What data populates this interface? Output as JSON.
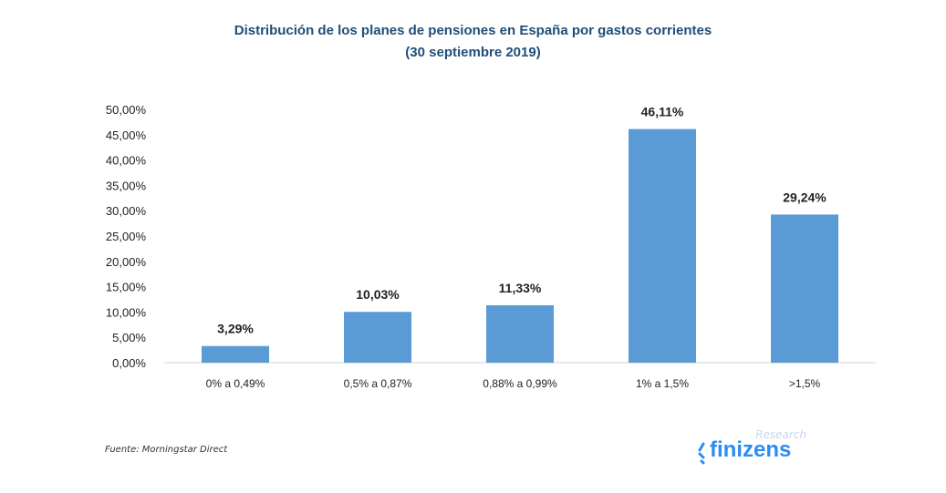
{
  "chart_data": {
    "type": "bar",
    "title": "Distribución de los planes de pensiones en España por gastos corrientes",
    "subtitle": "(30 septiembre 2019)",
    "categories": [
      "0% a 0,49%",
      "0,5% a 0,87%",
      "0,88% a 0,99%",
      "1% a 1,5%",
      ">1,5%"
    ],
    "values": [
      3.29,
      10.03,
      11.33,
      46.11,
      29.24
    ],
    "data_labels": [
      "3,29%",
      "10,03%",
      "11,33%",
      "46,11%",
      "29,24%"
    ],
    "ylim": [
      0,
      50
    ],
    "yticks": [
      "0,00%",
      "5,00%",
      "10,00%",
      "15,00%",
      "20,00%",
      "25,00%",
      "30,00%",
      "35,00%",
      "40,00%",
      "45,00%",
      "50,00%"
    ],
    "grid": false,
    "bar_color": "#5b9bd5",
    "xlabel": "",
    "ylabel": ""
  },
  "source": "Fuente:  Morningstar Direct",
  "logo": {
    "research": "Research",
    "brand": "finizens",
    "color": "#2b8cf3"
  }
}
